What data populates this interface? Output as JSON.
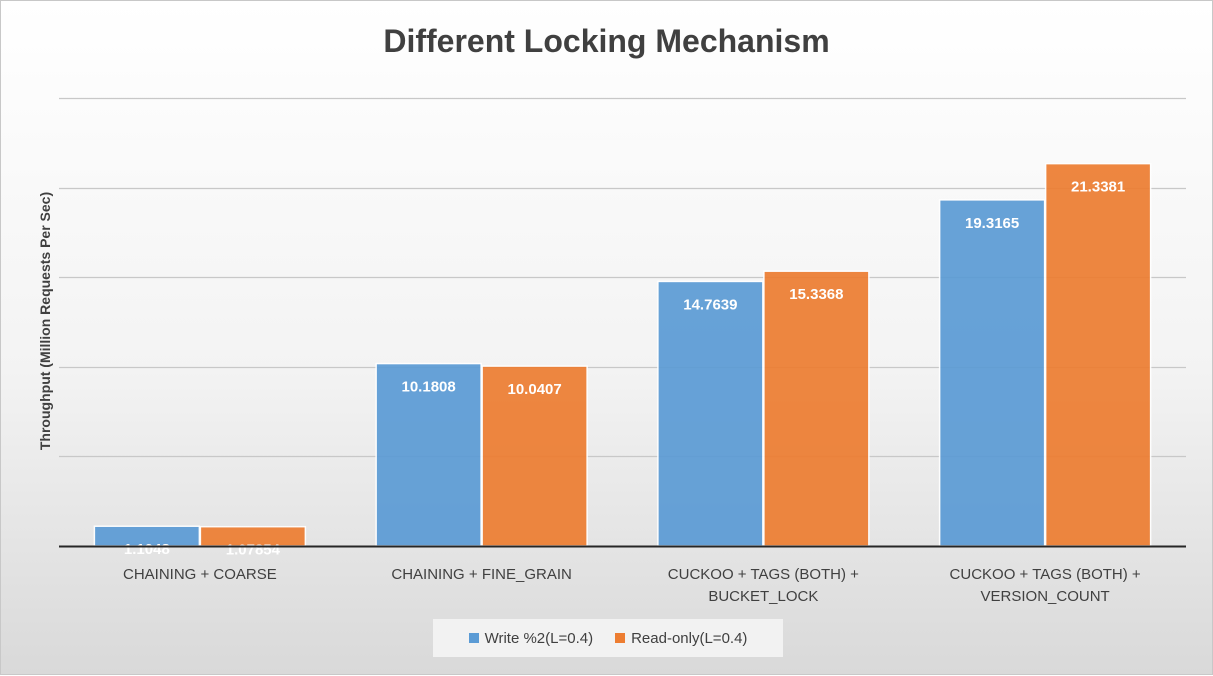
{
  "chart_data": {
    "type": "bar",
    "title": "Different Locking Mechanism",
    "xlabel": "",
    "ylabel": "Throughput (Million Requests Per Sec)",
    "ylim": [
      0,
      25
    ],
    "y_tick_step": 5,
    "y_tick_labels_shown": false,
    "grid": true,
    "legend_position": "bottom",
    "categories": [
      [
        "CHAINING + COARSE"
      ],
      [
        "CHAINING + FINE_GRAIN"
      ],
      [
        "CUCKOO + TAGS (BOTH) +",
        "BUCKET_LOCK"
      ],
      [
        "CUCKOO + TAGS (BOTH) +",
        "VERSION_COUNT"
      ]
    ],
    "series": [
      {
        "name": "Write %2(L=0.4)",
        "color": "#5b9bd5",
        "values": [
          1.1048,
          10.1808,
          14.7639,
          19.3165
        ],
        "labels": [
          "1.1048",
          "10.1808",
          "14.7639",
          "19.3165"
        ]
      },
      {
        "name": "Read-only(L=0.4)",
        "color": "#ed7d31",
        "values": [
          1.07854,
          10.0407,
          15.3368,
          21.3381
        ],
        "labels": [
          "1.07854",
          "10.0407",
          "15.3368",
          "21.3381"
        ]
      }
    ]
  }
}
